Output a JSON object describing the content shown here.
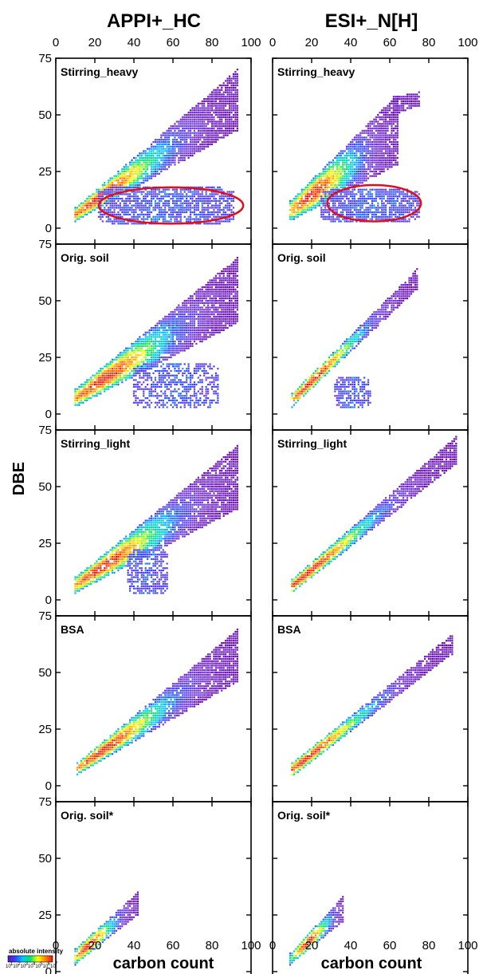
{
  "chart_data": {
    "type": "scatter",
    "figure_kind": "Kendrick-style DBE vs carbon number heat map (scatter), 5 rows x 2 columns",
    "ylabel": "DBE",
    "xlabel": "carbon count",
    "xlim": [
      0,
      100
    ],
    "ylim": [
      0,
      75
    ],
    "x_ticks": [
      "0",
      "20",
      "40",
      "60",
      "80",
      "100"
    ],
    "y_ticks": [
      "0",
      "25",
      "50",
      "75"
    ],
    "columns": [
      {
        "title": "APPI+_HC"
      },
      {
        "title": "ESI+_N[H]"
      }
    ],
    "rows": [
      {
        "label": "Stirring_heavy"
      },
      {
        "label": "Orig. soil"
      },
      {
        "label": "Stirring_light"
      },
      {
        "label": "BSA"
      },
      {
        "label": "Orig. soil*"
      }
    ],
    "legend": {
      "title": "absolute intensity",
      "tick_labels": [
        "10",
        "10",
        "10",
        "10",
        "10",
        "10",
        "10"
      ],
      "tick_exponents": [
        "1",
        "2",
        "3",
        "4",
        "5",
        "6",
        "7"
      ],
      "colors": [
        "#6a0dad",
        "#3344ff",
        "#00c8ff",
        "#00e070",
        "#ffff00",
        "#ff8800",
        "#ee1111"
      ]
    },
    "annotations": [
      {
        "type": "ellipse",
        "panel": "APPI+_HC / Stirring_heavy",
        "color": "#e0101a",
        "center": [
          59,
          10
        ],
        "radii": [
          37,
          8
        ]
      },
      {
        "type": "ellipse",
        "panel": "ESI+_N[H] / Stirring_heavy",
        "color": "#e0101a",
        "center": [
          52,
          11
        ],
        "radii": [
          24,
          8
        ]
      }
    ],
    "panels": [
      {
        "column": "APPI+_HC",
        "row": "Stirring_heavy",
        "regions": [
          {
            "kind": "band",
            "x_start": 10,
            "x_end": 93,
            "y_low_start": 3,
            "y_high_start": 9,
            "y_low_end": 43,
            "y_high_end": 70,
            "x_peak": 22
          },
          {
            "kind": "blob",
            "x_range": [
              22,
              91
            ],
            "y_range": [
              2,
              18
            ],
            "density": 0.75
          }
        ]
      },
      {
        "column": "ESI+_N[H]",
        "row": "Stirring_heavy",
        "regions": [
          {
            "kind": "band",
            "x_start": 9,
            "x_end": 64,
            "y_low_start": 3,
            "y_high_start": 12,
            "y_low_end": 28,
            "y_high_end": 59,
            "x_peak": 20
          },
          {
            "kind": "band",
            "x_start": 62,
            "x_end": 75,
            "y_low_start": 50,
            "y_high_start": 58,
            "y_low_end": 54,
            "y_high_end": 60,
            "x_peak": 0
          },
          {
            "kind": "blob",
            "x_range": [
              25,
              75
            ],
            "y_range": [
              3,
              17
            ],
            "density": 0.8
          }
        ]
      },
      {
        "column": "APPI+_HC",
        "row": "Orig. soil",
        "regions": [
          {
            "kind": "band",
            "x_start": 10,
            "x_end": 93,
            "y_low_start": 3,
            "y_high_start": 11,
            "y_low_end": 40,
            "y_high_end": 69,
            "x_peak": 24
          },
          {
            "kind": "blob",
            "x_range": [
              40,
              83
            ],
            "y_range": [
              3,
              22
            ],
            "density": 0.55
          }
        ]
      },
      {
        "column": "ESI+_N[H]",
        "row": "Orig. soil",
        "regions": [
          {
            "kind": "band",
            "x_start": 10,
            "x_end": 74,
            "y_low_start": 3,
            "y_high_start": 9,
            "y_low_end": 55,
            "y_high_end": 64,
            "x_peak": 20
          },
          {
            "kind": "blob",
            "x_range": [
              32,
              50
            ],
            "y_range": [
              3,
              16
            ],
            "density": 0.7
          }
        ]
      },
      {
        "column": "APPI+_HC",
        "row": "Stirring_light",
        "regions": [
          {
            "kind": "band",
            "x_start": 10,
            "x_end": 93,
            "y_low_start": 3,
            "y_high_start": 10,
            "y_low_end": 40,
            "y_high_end": 68,
            "x_peak": 24
          },
          {
            "kind": "blob",
            "x_range": [
              37,
              57
            ],
            "y_range": [
              3,
              22
            ],
            "density": 0.65
          }
        ]
      },
      {
        "column": "ESI+_N[H]",
        "row": "Stirring_light",
        "regions": [
          {
            "kind": "band",
            "x_start": 10,
            "x_end": 94,
            "y_low_start": 3,
            "y_high_start": 9,
            "y_low_end": 60,
            "y_high_end": 72,
            "x_peak": 18
          }
        ]
      },
      {
        "column": "APPI+_HC",
        "row": "BSA",
        "regions": [
          {
            "kind": "band",
            "x_start": 11,
            "x_end": 93,
            "y_low_start": 5,
            "y_high_start": 10,
            "y_low_end": 46,
            "y_high_end": 69,
            "x_peak": 24
          }
        ]
      },
      {
        "column": "ESI+_N[H]",
        "row": "BSA",
        "regions": [
          {
            "kind": "band",
            "x_start": 10,
            "x_end": 92,
            "y_low_start": 4,
            "y_high_start": 10,
            "y_low_end": 58,
            "y_high_end": 67,
            "x_peak": 18
          }
        ]
      },
      {
        "column": "APPI+_HC",
        "row": "Orig. soil*",
        "regions": [
          {
            "kind": "band",
            "x_start": 10,
            "x_end": 42,
            "y_low_start": 3,
            "y_high_start": 10,
            "y_low_end": 25,
            "y_high_end": 35,
            "x_peak": 17
          }
        ]
      },
      {
        "column": "ESI+_N[H]",
        "row": "Orig. soil*",
        "regions": [
          {
            "kind": "band",
            "x_start": 9,
            "x_end": 36,
            "y_low_start": 3,
            "y_high_start": 8,
            "y_low_end": 22,
            "y_high_end": 33,
            "x_peak": 18
          }
        ]
      }
    ]
  }
}
